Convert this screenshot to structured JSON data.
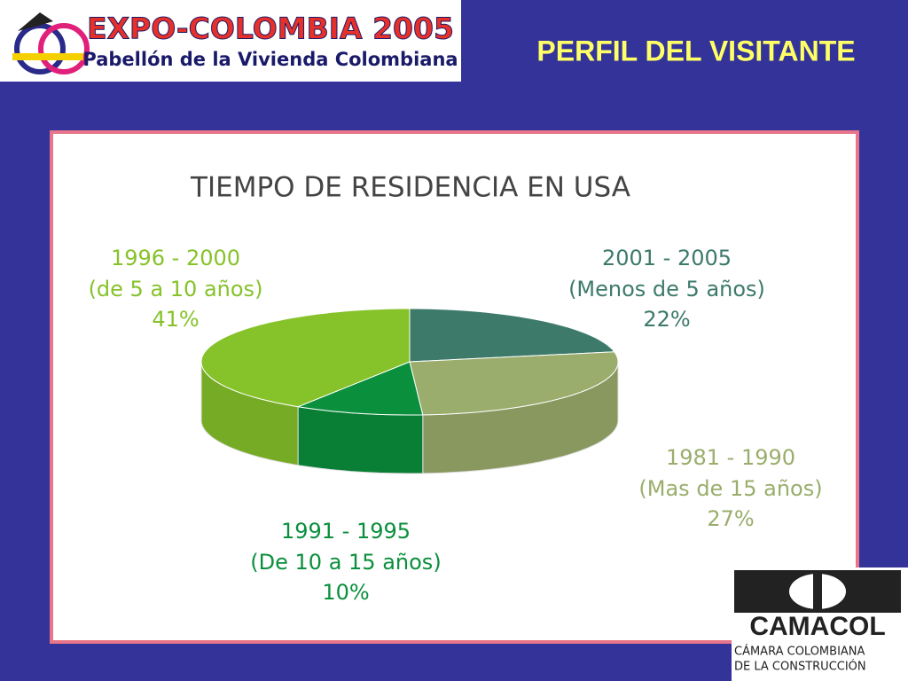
{
  "header": {
    "logo_title": "EXPO-COLOMBIA 2005",
    "logo_subtitle": "Pabellón de la Vivienda Colombiana",
    "title": "PERFIL DEL VISITANTE"
  },
  "chart_data": {
    "type": "pie",
    "title": "TIEMPO DE RESIDENCIA EN USA",
    "categories": [
      "2001 - 2005",
      "1981 - 1990",
      "1991 - 1995",
      "1996 - 2000"
    ],
    "descriptions": [
      "(Menos de 5 años)",
      "(Mas de 15 años)",
      "(De 10 a 15 años)",
      "(de 5 a 10 años)"
    ],
    "values": [
      22,
      27,
      10,
      41
    ],
    "value_labels": [
      "22%",
      "27%",
      "10%",
      "41%"
    ],
    "colors": [
      "#3d7a6a",
      "#9aad6c",
      "#0a8f3c",
      "#86c22a"
    ]
  },
  "footer": {
    "logo_name": "CAMACOL",
    "logo_line1": "CÁMARA COLOMBIANA",
    "logo_line2": "DE LA CONSTRUCCIÓN"
  }
}
